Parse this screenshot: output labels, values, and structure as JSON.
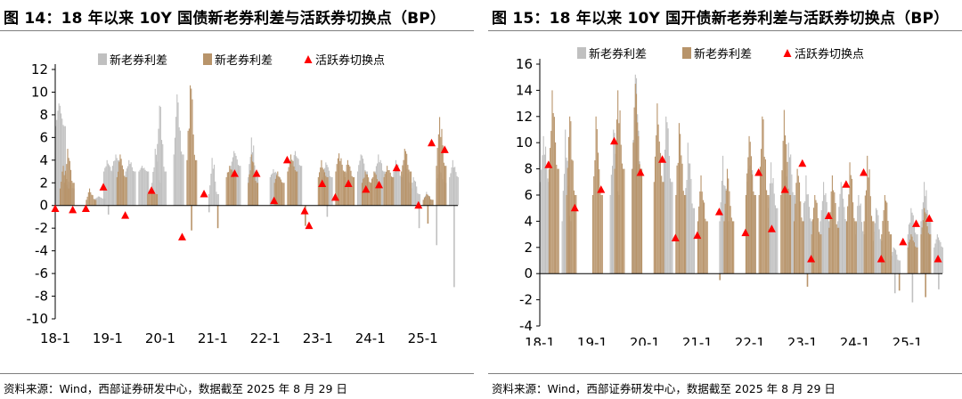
{
  "colors": {
    "spread_new": "#c0c0c0",
    "spread_old": "#b8946a",
    "marker": "#ff0000",
    "axis": "#000000"
  },
  "legend": {
    "new_spread": "新老券利差",
    "old_spread": "新老券利差",
    "switch_point": "活跃券切换点"
  },
  "source_text": "资料来源：Wind，西部证券研发中心，数据截至 2025 年 8 月 29 日",
  "panels": [
    {
      "title": "图 14：18 年以来 10Y 国债新老券利差与活跃券切换点（BP）"
    },
    {
      "title": "图 15：18 年以来 10Y 国开债新老券利差与活跃券切换点（BP）"
    }
  ],
  "chart_data": [
    {
      "type": "bar",
      "title": "图 14：18 年以来 10Y 国债新老券利差与活跃券切换点（BP）",
      "x_axis": {
        "type": "date",
        "start": "2018-01",
        "end": "2025-09",
        "ticks": [
          "18-1",
          "19-1",
          "20-1",
          "21-1",
          "22-1",
          "23-1",
          "24-1",
          "25-1"
        ]
      },
      "ylim": [
        -10,
        12
      ],
      "yticks": [
        -10,
        -8,
        -6,
        -4,
        -2,
        0,
        2,
        4,
        6,
        8,
        10,
        12
      ],
      "legend_position": "top-center",
      "series": [
        {
          "name": "新老券利差",
          "style": "gray-bars",
          "segments": [
            [
              "2018-01",
              9.0,
              7.0
            ],
            [
              "2018-03",
              2.2,
              1.5
            ],
            [
              "2018-10",
              0.8,
              0.6
            ],
            [
              "2018-12",
              4.0,
              3.0
            ],
            [
              "2019-02",
              4.5,
              3.5
            ],
            [
              "2019-05",
              4.0,
              3.0
            ],
            [
              "2019-08",
              3.5,
              3.0
            ],
            [
              "2019-11",
              5.0,
              2.0
            ],
            [
              "2019-12",
              8.8,
              3.0
            ],
            [
              "2020-04",
              9.8,
              4.5
            ],
            [
              "2020-12",
              4.2,
              1.0
            ],
            [
              "2021-05",
              4.8,
              3.5
            ],
            [
              "2021-09",
              6.0,
              2.5
            ],
            [
              "2022-02",
              3.2,
              2.5
            ],
            [
              "2022-07",
              4.8,
              3.5
            ],
            [
              "2023-02",
              3.8,
              2.5
            ],
            [
              "2023-10",
              4.5,
              3.0
            ],
            [
              "2024-02",
              4.5,
              3.0
            ],
            [
              "2024-06",
              4.0,
              2.5
            ],
            [
              "2024-08",
              4.0,
              2.0
            ],
            [
              "2024-10",
              2.5,
              1.0
            ],
            [
              "2025-01",
              1.2,
              0.5
            ],
            [
              "2025-04",
              3.0,
              2.0
            ],
            [
              "2025-07",
              4.0,
              2.5
            ]
          ],
          "dips": [
            [
              "2019-01",
              -0.8
            ],
            [
              "2020-12",
              -0.6
            ],
            [
              "2023-03",
              -1.0
            ],
            [
              "2024-12",
              -2.0
            ],
            [
              "2025-04",
              -3.5
            ],
            [
              "2025-08",
              -7.2
            ]
          ]
        },
        {
          "name": "新老券利差",
          "style": "brown-bars",
          "segments": [
            [
              "2018-02",
              3.5,
              1.5
            ],
            [
              "2018-03",
              5.0,
              2.0
            ],
            [
              "2018-08",
              1.5,
              0.5
            ],
            [
              "2019-03",
              4.5,
              2.5
            ],
            [
              "2019-10",
              1.5,
              1.0
            ],
            [
              "2020-07",
              10.6,
              4.0
            ],
            [
              "2021-04",
              3.5,
              2.5
            ],
            [
              "2021-09",
              4.5,
              2.0
            ],
            [
              "2022-03",
              3.0,
              2.0
            ],
            [
              "2022-06",
              4.5,
              3.0
            ],
            [
              "2023-01",
              4.0,
              2.5
            ],
            [
              "2023-05",
              4.6,
              3.0
            ],
            [
              "2023-07",
              4.0,
              2.5
            ],
            [
              "2023-11",
              3.0,
              2.0
            ],
            [
              "2024-01",
              3.0,
              2.0
            ],
            [
              "2024-04",
              3.5,
              2.5
            ],
            [
              "2024-08",
              5.0,
              3.0
            ],
            [
              "2025-01",
              1.0,
              0.5
            ],
            [
              "2025-04",
              7.8,
              3.5
            ]
          ],
          "dips": [
            [
              "2020-08",
              -2.2
            ],
            [
              "2021-02",
              -2.0
            ],
            [
              "2022-10",
              -1.8
            ],
            [
              "2025-02",
              -1.6
            ]
          ]
        },
        {
          "name": "活跃券切换点",
          "type": "scatter",
          "points": [
            [
              "2018-01",
              -0.3
            ],
            [
              "2018-05",
              -0.4
            ],
            [
              "2018-08",
              -0.3
            ],
            [
              "2018-12",
              1.6
            ],
            [
              "2019-05",
              -0.9
            ],
            [
              "2019-11",
              1.3
            ],
            [
              "2020-06",
              -2.8
            ],
            [
              "2020-11",
              1.0
            ],
            [
              "2021-06",
              2.8
            ],
            [
              "2021-11",
              2.8
            ],
            [
              "2022-03",
              0.4
            ],
            [
              "2022-06",
              4.0
            ],
            [
              "2022-10",
              -0.5
            ],
            [
              "2022-11",
              -1.8
            ],
            [
              "2023-02",
              1.9
            ],
            [
              "2023-05",
              0.7
            ],
            [
              "2023-08",
              1.9
            ],
            [
              "2023-12",
              1.4
            ],
            [
              "2024-03",
              1.8
            ],
            [
              "2024-07",
              3.3
            ],
            [
              "2024-12",
              0.0
            ],
            [
              "2025-03",
              5.5
            ],
            [
              "2025-06",
              4.9
            ]
          ]
        }
      ]
    },
    {
      "type": "bar",
      "title": "图 15：18 年以来 10Y 国开债新老券利差与活跃券切换点（BP）",
      "x_axis": {
        "type": "date",
        "start": "2018-01",
        "end": "2025-09",
        "ticks": [
          "18-1",
          "19-1",
          "20-1",
          "21-1",
          "22-1",
          "23-1",
          "24-1",
          "25-1"
        ]
      },
      "ylim": [
        -4,
        16
      ],
      "yticks": [
        -4,
        -2,
        0,
        2,
        4,
        6,
        8,
        10,
        12,
        14,
        16
      ],
      "legend_position": "top-center",
      "series": [
        {
          "name": "新老券利差",
          "style": "gray-bars",
          "segments": [
            [
              "2018-01",
              10.5,
              7.0
            ],
            [
              "2018-06",
              11.0,
              4.0
            ],
            [
              "2019-05",
              11.0,
              6.0
            ],
            [
              "2019-10",
              15.2,
              8.0
            ],
            [
              "2020-05",
              12.0,
              7.0
            ],
            [
              "2020-10",
              10.0,
              5.0
            ],
            [
              "2021-06",
              9.0,
              4.0
            ],
            [
              "2021-12",
              10.0,
              6.0
            ],
            [
              "2022-05",
              8.5,
              5.0
            ],
            [
              "2022-09",
              10.0,
              6.0
            ],
            [
              "2023-01",
              7.5,
              4.0
            ],
            [
              "2023-05",
              7.0,
              4.0
            ],
            [
              "2023-09",
              7.0,
              4.0
            ],
            [
              "2024-01",
              6.0,
              3.0
            ],
            [
              "2024-05",
              5.0,
              2.5
            ],
            [
              "2024-09",
              2.0,
              1.0
            ],
            [
              "2025-01",
              5.0,
              3.0
            ],
            [
              "2025-04",
              7.0,
              4.0
            ],
            [
              "2025-07",
              3.0,
              2.0
            ]
          ],
          "dips": [
            [
              "2024-10",
              -1.5
            ],
            [
              "2025-02",
              -2.2
            ],
            [
              "2025-08",
              -1.2
            ]
          ]
        },
        {
          "name": "新老券利差",
          "style": "brown-bars",
          "segments": [
            [
              "2018-03",
              14.0,
              8.0
            ],
            [
              "2018-07",
              12.0,
              6.0
            ],
            [
              "2019-01",
              12.0,
              6.0
            ],
            [
              "2019-06",
              14.0,
              8.0
            ],
            [
              "2019-10",
              14.5,
              8.0
            ],
            [
              "2020-03",
              13.0,
              7.0
            ],
            [
              "2020-08",
              11.5,
              6.0
            ],
            [
              "2021-01",
              7.5,
              4.0
            ],
            [
              "2021-07",
              8.0,
              4.0
            ],
            [
              "2021-12",
              10.5,
              6.0
            ],
            [
              "2022-03",
              12.0,
              6.0
            ],
            [
              "2022-08",
              12.5,
              6.0
            ],
            [
              "2022-11",
              8.0,
              4.0
            ],
            [
              "2023-03",
              6.0,
              3.0
            ],
            [
              "2023-07",
              7.5,
              3.5
            ],
            [
              "2023-11",
              8.5,
              4.0
            ],
            [
              "2024-03",
              9.0,
              4.0
            ],
            [
              "2024-07",
              6.0,
              3.0
            ],
            [
              "2025-01",
              3.0,
              2.0
            ],
            [
              "2025-04",
              5.0,
              3.0
            ]
          ],
          "dips": [
            [
              "2021-06",
              -0.5
            ],
            [
              "2023-02",
              -1.0
            ],
            [
              "2024-11",
              -1.3
            ],
            [
              "2025-05",
              -1.8
            ]
          ]
        },
        {
          "name": "活跃券切换点",
          "type": "scatter",
          "points": [
            [
              "2018-03",
              8.3
            ],
            [
              "2018-09",
              5.0
            ],
            [
              "2019-03",
              6.4
            ],
            [
              "2019-06",
              10.1
            ],
            [
              "2019-12",
              7.7
            ],
            [
              "2020-05",
              8.7
            ],
            [
              "2020-08",
              2.7
            ],
            [
              "2021-01",
              2.9
            ],
            [
              "2021-06",
              4.7
            ],
            [
              "2021-12",
              3.1
            ],
            [
              "2022-03",
              7.7
            ],
            [
              "2022-06",
              3.4
            ],
            [
              "2022-09",
              6.4
            ],
            [
              "2023-01",
              8.4
            ],
            [
              "2023-03",
              1.1
            ],
            [
              "2023-07",
              4.4
            ],
            [
              "2023-11",
              6.8
            ],
            [
              "2024-03",
              7.7
            ],
            [
              "2024-07",
              1.1
            ],
            [
              "2024-12",
              2.4
            ],
            [
              "2025-03",
              3.8
            ],
            [
              "2025-06",
              4.2
            ],
            [
              "2025-08",
              1.1
            ]
          ]
        }
      ]
    }
  ]
}
